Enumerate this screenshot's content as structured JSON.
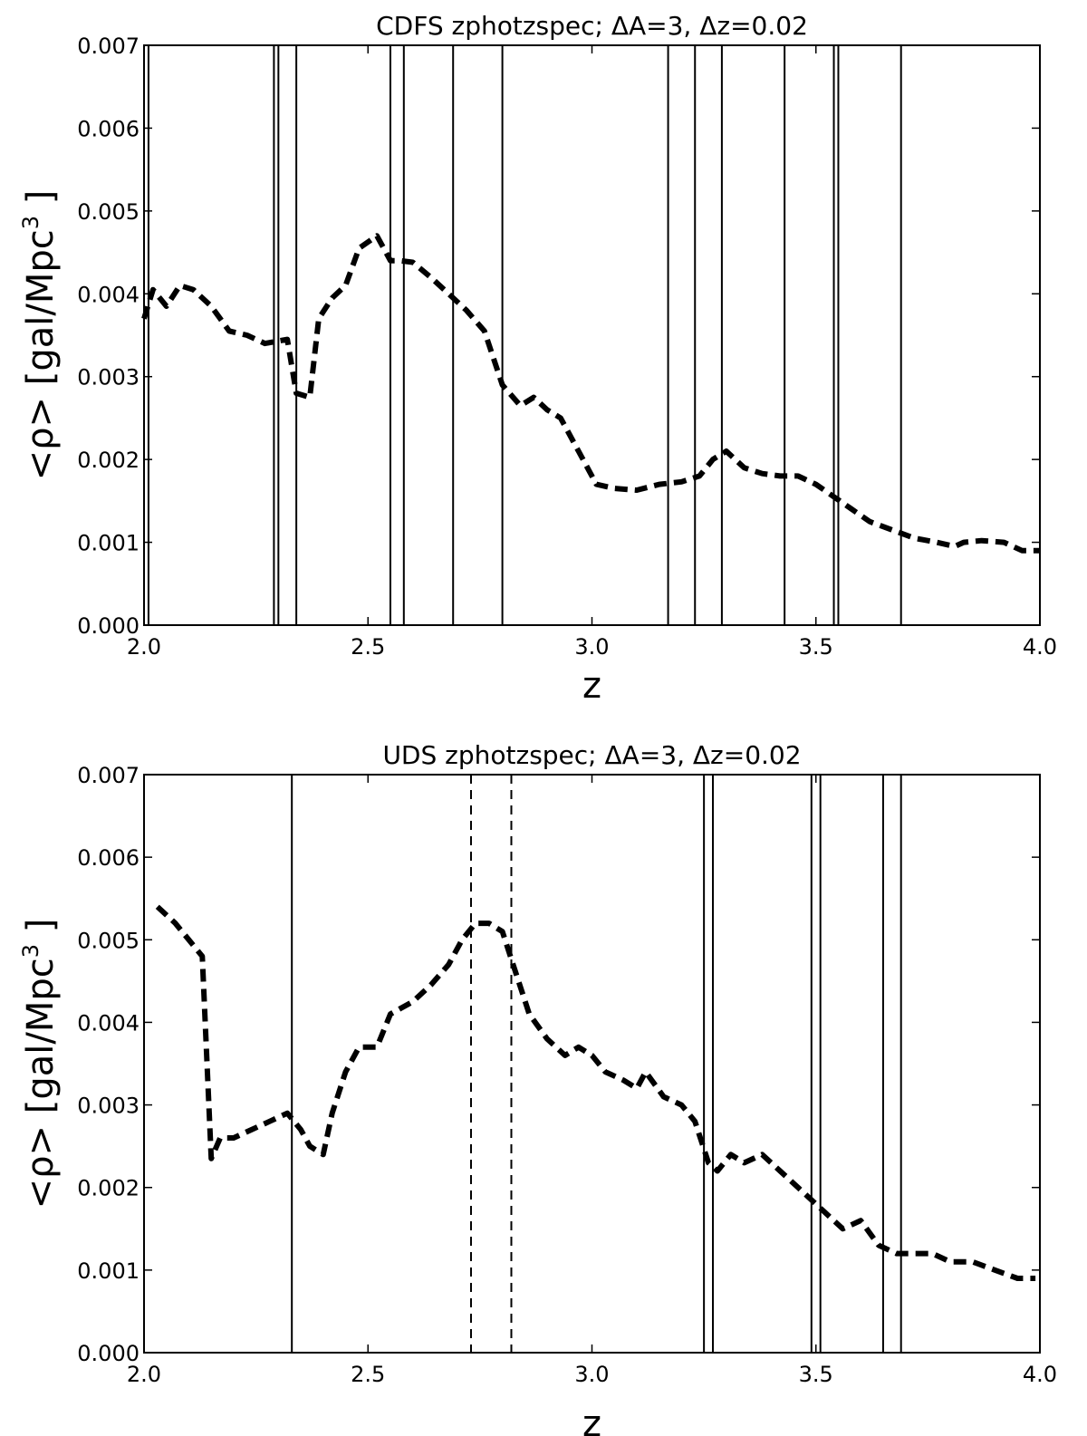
{
  "chart_data": [
    {
      "type": "line",
      "title": "CDFS zphotzspec; ΔA=3, Δz=0.02",
      "xlabel": "z",
      "ylabel_main": "<ρ> [gal/Mpc",
      "ylabel_sup": "3",
      "ylabel_end": " ]",
      "xlim": [
        2.0,
        4.0
      ],
      "ylim": [
        0.0,
        0.007
      ],
      "x_ticks": [
        "2.0",
        "2.5",
        "3.0",
        "3.5",
        "4.0"
      ],
      "y_ticks": [
        "0.000",
        "0.001",
        "0.002",
        "0.003",
        "0.004",
        "0.005",
        "0.006",
        "0.007"
      ],
      "series": [
        {
          "style": "dashed",
          "x": [
            2.0,
            2.02,
            2.05,
            2.08,
            2.11,
            2.15,
            2.19,
            2.23,
            2.27,
            2.32,
            2.34,
            2.37,
            2.39,
            2.42,
            2.45,
            2.48,
            2.52,
            2.55,
            2.57,
            2.6,
            2.64,
            2.68,
            2.72,
            2.76,
            2.8,
            2.84,
            2.87,
            2.9,
            2.93,
            2.97,
            3.01,
            3.05,
            3.1,
            3.15,
            3.2,
            3.24,
            3.27,
            3.3,
            3.34,
            3.38,
            3.42,
            3.46,
            3.5,
            3.54,
            3.58,
            3.62,
            3.67,
            3.72,
            3.77,
            3.81,
            3.83,
            3.87,
            3.92,
            3.96,
            4.0
          ],
          "y": [
            0.0037,
            0.00405,
            0.00385,
            0.0041,
            0.00405,
            0.00385,
            0.00355,
            0.0035,
            0.0034,
            0.00345,
            0.0028,
            0.00275,
            0.0037,
            0.00395,
            0.0041,
            0.00455,
            0.0047,
            0.0044,
            0.0044,
            0.00438,
            0.0042,
            0.004,
            0.0038,
            0.00355,
            0.0029,
            0.00265,
            0.00275,
            0.0026,
            0.0025,
            0.0021,
            0.0017,
            0.00165,
            0.00163,
            0.0017,
            0.00173,
            0.0018,
            0.002,
            0.0021,
            0.0019,
            0.00183,
            0.0018,
            0.0018,
            0.0017,
            0.00155,
            0.0014,
            0.00125,
            0.00115,
            0.00105,
            0.001,
            0.00095,
            0.001,
            0.00102,
            0.001,
            0.0009,
            0.0009
          ]
        }
      ],
      "vlines_solid": [
        2.01,
        2.29,
        2.3,
        2.34,
        2.55,
        2.58,
        2.69,
        2.8,
        3.17,
        3.23,
        3.29,
        3.43,
        3.54,
        3.55,
        3.69
      ],
      "vlines_dashed": []
    },
    {
      "type": "line",
      "title": "UDS zphotzspec; ΔA=3, Δz=0.02",
      "xlabel": "z",
      "ylabel_main": "<ρ> [gal/Mpc",
      "ylabel_sup": "3",
      "ylabel_end": " ]",
      "xlim": [
        2.0,
        4.0
      ],
      "ylim": [
        0.0,
        0.007
      ],
      "x_ticks": [
        "2.0",
        "2.5",
        "3.0",
        "3.5",
        "4.0"
      ],
      "y_ticks": [
        "0.000",
        "0.001",
        "0.002",
        "0.003",
        "0.004",
        "0.005",
        "0.006",
        "0.007"
      ],
      "series": [
        {
          "style": "dashed",
          "x": [
            2.03,
            2.07,
            2.13,
            2.15,
            2.17,
            2.2,
            2.24,
            2.28,
            2.32,
            2.35,
            2.37,
            2.4,
            2.42,
            2.45,
            2.48,
            2.52,
            2.55,
            2.6,
            2.64,
            2.68,
            2.71,
            2.74,
            2.77,
            2.8,
            2.83,
            2.86,
            2.9,
            2.94,
            2.97,
            3.0,
            3.03,
            3.07,
            3.1,
            3.12,
            3.16,
            3.2,
            3.23,
            3.26,
            3.28,
            3.31,
            3.34,
            3.38,
            3.42,
            3.46,
            3.52,
            3.56,
            3.6,
            3.64,
            3.68,
            3.72,
            3.76,
            3.8,
            3.85,
            3.9,
            3.95,
            3.99
          ],
          "y": [
            0.0054,
            0.0052,
            0.0048,
            0.00235,
            0.0026,
            0.0026,
            0.0027,
            0.0028,
            0.0029,
            0.0027,
            0.0025,
            0.0024,
            0.0029,
            0.0034,
            0.0037,
            0.0037,
            0.0041,
            0.00425,
            0.00445,
            0.0047,
            0.005,
            0.0052,
            0.0052,
            0.0051,
            0.0046,
            0.0041,
            0.0038,
            0.0036,
            0.0037,
            0.0036,
            0.0034,
            0.0033,
            0.0032,
            0.0034,
            0.0031,
            0.003,
            0.0028,
            0.0023,
            0.0022,
            0.0024,
            0.0023,
            0.0024,
            0.0022,
            0.002,
            0.0017,
            0.0015,
            0.0016,
            0.0013,
            0.0012,
            0.0012,
            0.0012,
            0.0011,
            0.0011,
            0.001,
            0.0009,
            0.0009
          ]
        }
      ],
      "vlines_solid": [
        2.33,
        3.25,
        3.27,
        3.49,
        3.51,
        3.65,
        3.69,
        4.0
      ],
      "vlines_dashed": [
        2.73,
        2.82
      ]
    }
  ]
}
